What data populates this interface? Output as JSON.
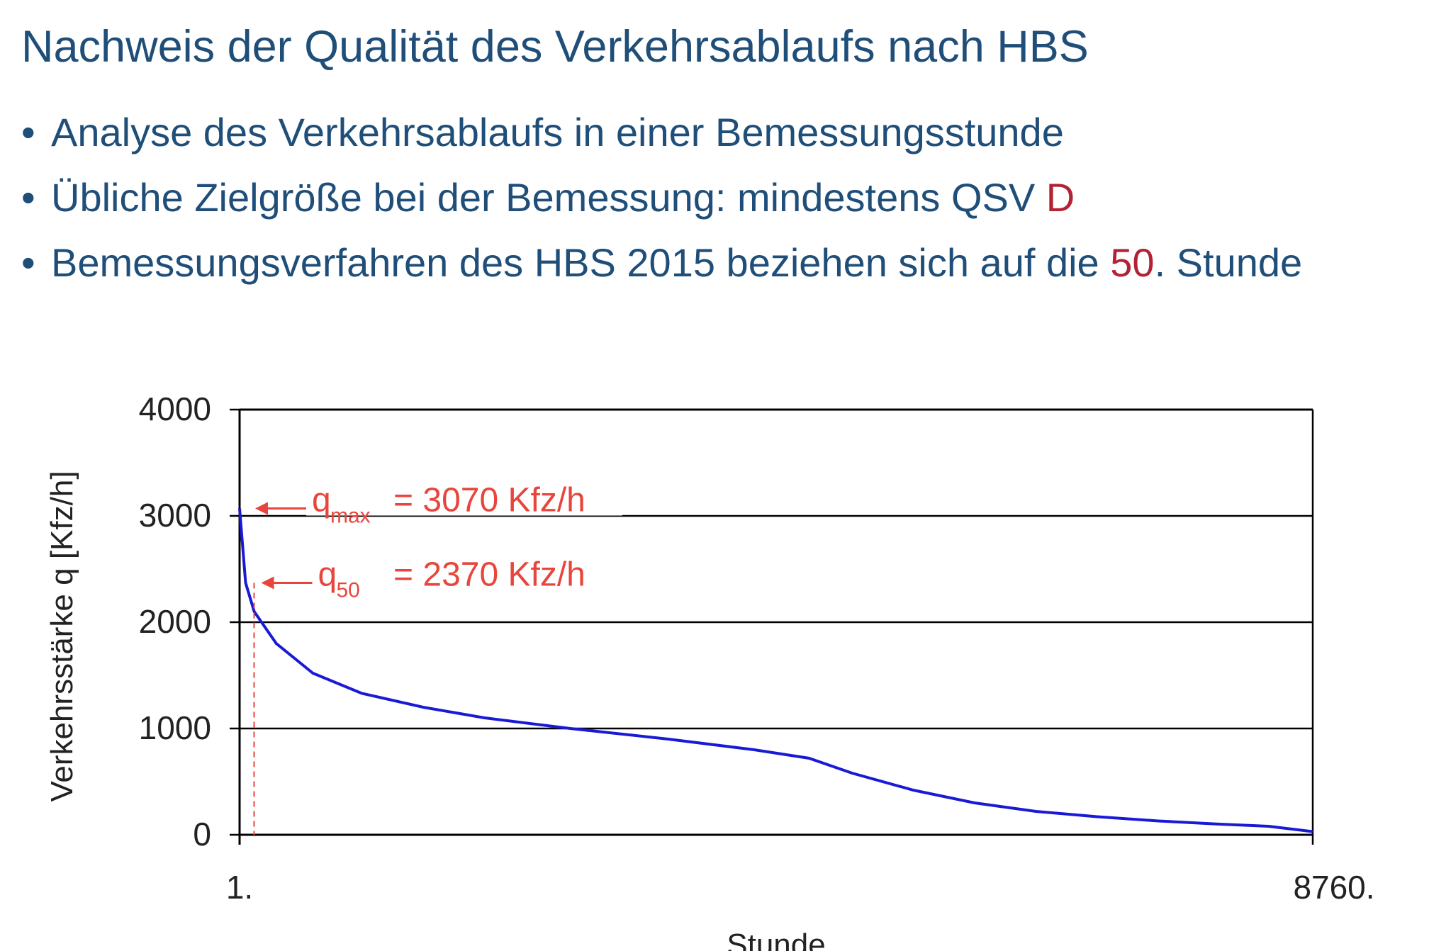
{
  "slide": {
    "title": "Nachweis der Qualität des Verkehrsablaufs nach HBS",
    "bullets": [
      {
        "text": "Analyse des Verkehrsablaufs in einer Bemessungsstunde",
        "highlight": "",
        "suffix": ""
      },
      {
        "text": "Übliche Zielgröße bei der Bemessung: mindestens QSV ",
        "highlight": "D",
        "suffix": ""
      },
      {
        "text": "Bemessungsverfahren des HBS 2015 beziehen sich auf die ",
        "highlight": "50",
        "suffix": ". Stunde"
      }
    ]
  },
  "colors": {
    "title": "#1f4e79",
    "highlight": "#b22234",
    "curve": "#1a1ad6",
    "annotation": "#e8463c"
  },
  "chart_data": {
    "type": "line",
    "title": "",
    "xlabel": "Stunde",
    "ylabel": "Verkehrsstärke q [Kfz/h]",
    "xlim": [
      1,
      8760
    ],
    "ylim": [
      0,
      4000
    ],
    "y_ticks": [
      "0",
      "1000",
      "2000",
      "3000",
      "4000"
    ],
    "x_tick_labels": [
      {
        "x": 1,
        "label": "1."
      },
      {
        "x": 8760,
        "label": "8760."
      }
    ],
    "grid": "horizontal",
    "series": [
      {
        "name": "",
        "x": [
          1,
          50,
          120,
          300,
          600,
          1000,
          1500,
          2000,
          2700,
          3500,
          4200,
          4650,
          5000,
          5500,
          6000,
          6500,
          7000,
          7500,
          8000,
          8400,
          8760
        ],
        "y": [
          3070,
          2370,
          2100,
          1800,
          1520,
          1330,
          1200,
          1100,
          1000,
          900,
          800,
          720,
          580,
          420,
          300,
          220,
          170,
          130,
          100,
          80,
          30
        ]
      }
    ],
    "annotations": [
      {
        "id": "qmax",
        "symbol": "q",
        "subscript": "max",
        "text": "= 3070 Kfz/h",
        "x": 1,
        "y": 3070
      },
      {
        "id": "q50",
        "symbol": "q",
        "subscript": "50",
        "text": "= 2370 Kfz/h",
        "x": 50,
        "y": 2370
      }
    ]
  }
}
